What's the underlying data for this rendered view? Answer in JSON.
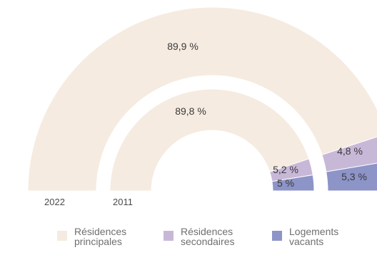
{
  "chart_data": {
    "type": "pie",
    "title": "",
    "series": [
      {
        "name": "2022",
        "values": [
          89.9,
          4.8,
          5.3
        ],
        "labels": [
          "89,9 %",
          "4,8 %",
          "5,3 %"
        ]
      },
      {
        "name": "2011",
        "values": [
          89.8,
          5.2,
          5.0
        ],
        "labels": [
          "89,8 %",
          "5,2 %",
          "5 %"
        ]
      }
    ],
    "categories": [
      "Résidences principales",
      "Résidences secondaires",
      "Logements vacants"
    ],
    "legend": {
      "placement": "bottom",
      "items": [
        {
          "label": "Résidences principales",
          "color": "#f5ebe0"
        },
        {
          "label": "Résidences secondaires",
          "color": "#c8b8d8"
        },
        {
          "label": "Logements vacants",
          "color": "#8d94c8"
        }
      ]
    }
  }
}
